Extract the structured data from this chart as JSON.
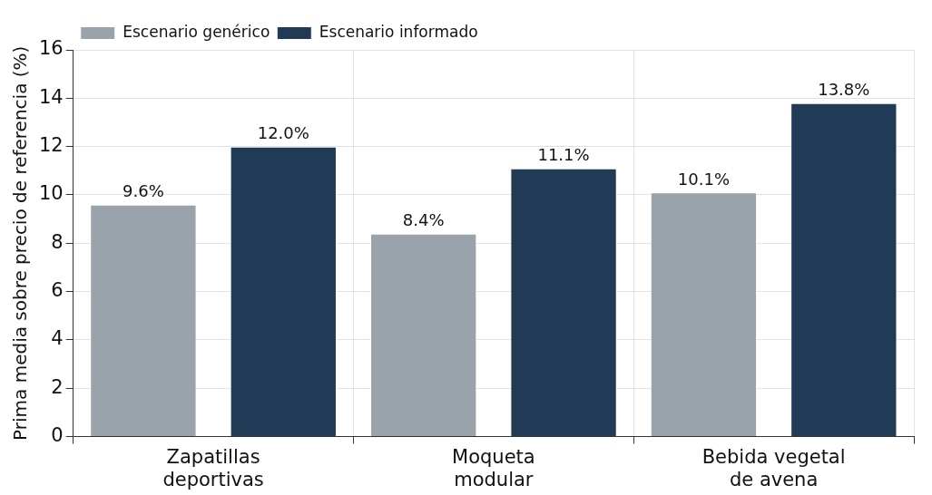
{
  "chart_data": {
    "type": "bar",
    "ylabel": "Prima media sobre precio de referencia (%)",
    "categories": [
      "Zapatillas deportivas",
      "Moqueta modular",
      "Bebida vegetal de avena"
    ],
    "series": [
      {
        "name": "Escenario genérico",
        "color": "#9aa2ab",
        "values": [
          9.6,
          8.4,
          10.1
        ],
        "value_labels": [
          "9.6%",
          "8.4%",
          "10.1%"
        ]
      },
      {
        "name": "Escenario informado",
        "color": "#213a56",
        "values": [
          12.0,
          11.1,
          13.8
        ],
        "value_labels": [
          "12.0%",
          "11.1%",
          "13.8%"
        ]
      }
    ],
    "ylim": [
      0,
      16
    ],
    "yticks": [
      0,
      2,
      4,
      6,
      8,
      10,
      12,
      14,
      16
    ],
    "grid": true,
    "legend": "top left"
  }
}
